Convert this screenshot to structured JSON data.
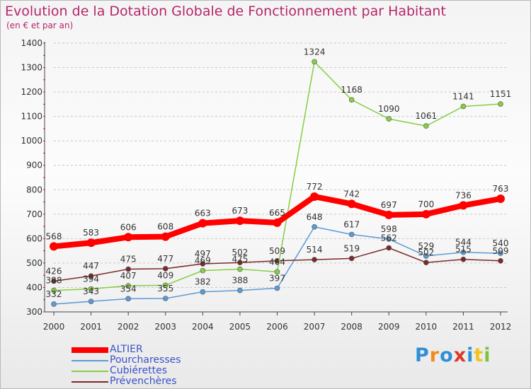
{
  "title": "Evolution de la Dotation Globale de Fonctionnement par Habitant",
  "subtitle": "(en € et par an)",
  "logo": {
    "text": "Proxiti",
    "colors": [
      "#2e8fd6",
      "#f08a1c",
      "#2e8fd6",
      "#d93a2b",
      "#2e8fd6",
      "#f2c31f",
      "#7cc142"
    ]
  },
  "chart_data": {
    "type": "line",
    "x": [
      2000,
      2001,
      2002,
      2003,
      2004,
      2005,
      2006,
      2007,
      2008,
      2009,
      2010,
      2011,
      2012
    ],
    "x_tick_labels": [
      "2000",
      "2001",
      "2002",
      "2003",
      "2004",
      "2005",
      "2006",
      "2007",
      "2008",
      "2009",
      "2010",
      "2011",
      "2012"
    ],
    "ylim": [
      300,
      1400
    ],
    "y_ticks": [
      300,
      400,
      500,
      600,
      700,
      800,
      900,
      1000,
      1100,
      1200,
      1300,
      1400
    ],
    "y_tick_labels": [
      "300",
      "400",
      "500",
      "600",
      "700",
      "800",
      "900",
      "1000",
      "1100",
      "1200",
      "1300",
      "1400"
    ],
    "grid": "horizontal dashed",
    "legend_position": "bottom-left",
    "series": [
      {
        "name": "ALTIER",
        "color": "#ff0000",
        "values": [
          568,
          583,
          606,
          608,
          663,
          673,
          665,
          772,
          742,
          697,
          700,
          736,
          763
        ],
        "labels": [
          "568",
          "583",
          "606",
          "608",
          "663",
          "673",
          "665",
          "772",
          "742",
          "697",
          "700",
          "736",
          "763"
        ]
      },
      {
        "name": "Pourcharesses",
        "color": "#5b9bd5",
        "values": [
          332,
          343,
          354,
          355,
          382,
          388,
          397,
          648,
          617,
          598,
          529,
          544,
          540
        ],
        "labels": [
          "332",
          "343",
          "354",
          "355",
          "382",
          "388",
          "397",
          "648",
          "617",
          "598",
          "529",
          "544",
          "540"
        ]
      },
      {
        "name": "Cubiérettes",
        "color": "#88cc44",
        "values": [
          388,
          394,
          407,
          409,
          469,
          475,
          464,
          1324,
          1168,
          1090,
          1061,
          1141,
          1151
        ],
        "labels": [
          "388",
          "394",
          "407",
          "409",
          "469",
          "475",
          "464",
          "1324",
          "1168",
          "1090",
          "1061",
          "1141",
          "1151"
        ]
      },
      {
        "name": "Prévenchères",
        "color": "#7a2a2a",
        "values": [
          426,
          447,
          475,
          477,
          497,
          502,
          509,
          514,
          519,
          562,
          502,
          515,
          509
        ],
        "labels": [
          "426",
          "447",
          "475",
          "477",
          "497",
          "502",
          "509",
          "514",
          "519",
          "562",
          "502",
          "515",
          "509"
        ]
      }
    ]
  }
}
